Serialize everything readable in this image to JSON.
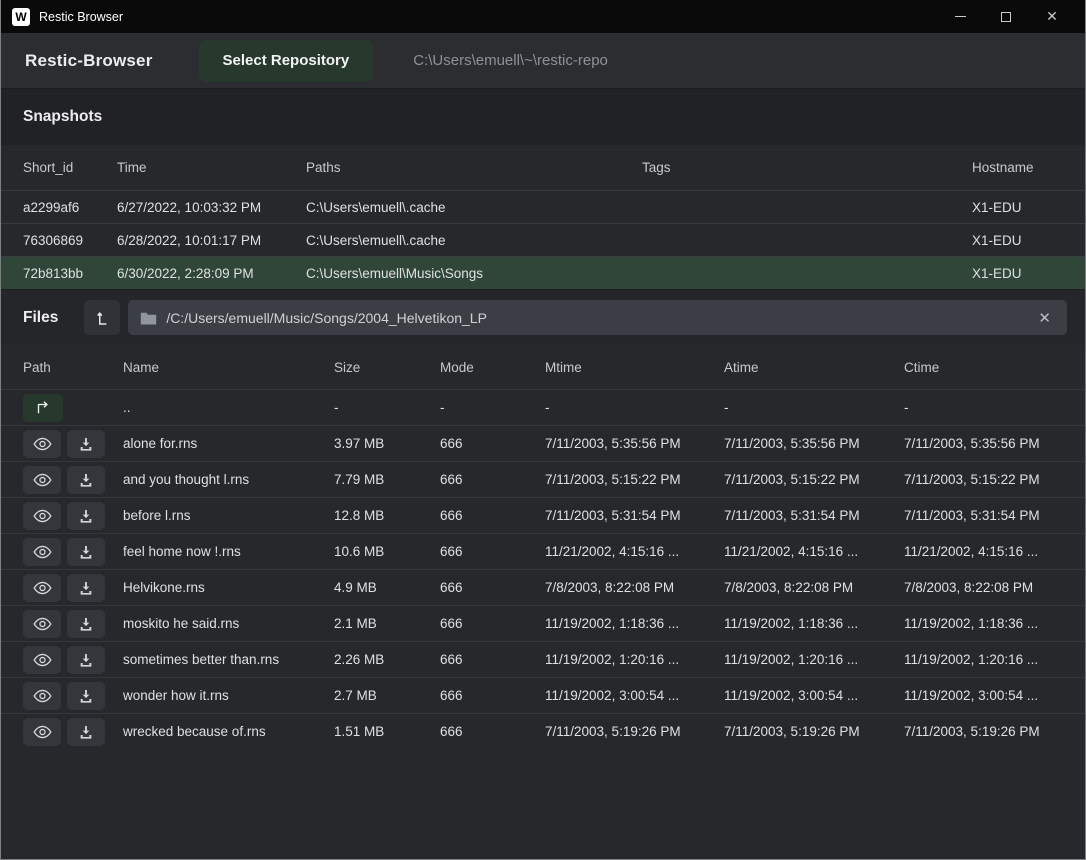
{
  "window": {
    "title": "Restic Browser",
    "controls": {
      "minimize": "minimize",
      "maximize": "maximize",
      "close": "✕"
    }
  },
  "header": {
    "app_title": "Restic-Browser",
    "select_repo_label": "Select Repository",
    "repo_path": "C:\\Users\\emuell\\~\\restic-repo"
  },
  "snapshots": {
    "heading": "Snapshots",
    "columns": [
      "Short_id",
      "Time",
      "Paths",
      "Tags",
      "Hostname"
    ],
    "rows": [
      {
        "short_id": "a2299af6",
        "time": "6/27/2022, 10:03:32 PM",
        "paths": "C:\\Users\\emuell\\.cache",
        "tags": "",
        "hostname": "X1-EDU",
        "selected": false
      },
      {
        "short_id": "76306869",
        "time": "6/28/2022, 10:01:17 PM",
        "paths": "C:\\Users\\emuell\\.cache",
        "tags": "",
        "hostname": "X1-EDU",
        "selected": false
      },
      {
        "short_id": "72b813bb",
        "time": "6/30/2022, 2:28:09 PM",
        "paths": "C:\\Users\\emuell\\Music\\Songs",
        "tags": "",
        "hostname": "X1-EDU",
        "selected": true
      }
    ]
  },
  "files": {
    "heading": "Files",
    "breadcrumb_path": "/C:/Users/emuell/Music/Songs/2004_Helvetikon_LP",
    "clear_label": "✕",
    "columns": [
      "Path",
      "Name",
      "Size",
      "Mode",
      "Mtime",
      "Atime",
      "Ctime"
    ],
    "parent_row": {
      "name": "..",
      "size": "-",
      "mode": "-",
      "mtime": "-",
      "atime": "-",
      "ctime": "-"
    },
    "rows": [
      {
        "name": "alone for.rns",
        "size": "3.97 MB",
        "mode": "666",
        "mtime": "7/11/2003, 5:35:56 PM",
        "atime": "7/11/2003, 5:35:56 PM",
        "ctime": "7/11/2003, 5:35:56 PM"
      },
      {
        "name": "and you thought l.rns",
        "size": "7.79 MB",
        "mode": "666",
        "mtime": "7/11/2003, 5:15:22 PM",
        "atime": "7/11/2003, 5:15:22 PM",
        "ctime": "7/11/2003, 5:15:22 PM"
      },
      {
        "name": "before l.rns",
        "size": "12.8 MB",
        "mode": "666",
        "mtime": "7/11/2003, 5:31:54 PM",
        "atime": "7/11/2003, 5:31:54 PM",
        "ctime": "7/11/2003, 5:31:54 PM"
      },
      {
        "name": "feel home now !.rns",
        "size": "10.6 MB",
        "mode": "666",
        "mtime": "11/21/2002, 4:15:16 ...",
        "atime": "11/21/2002, 4:15:16 ...",
        "ctime": "11/21/2002, 4:15:16 ..."
      },
      {
        "name": "Helvikone.rns",
        "size": "4.9 MB",
        "mode": "666",
        "mtime": "7/8/2003, 8:22:08 PM",
        "atime": "7/8/2003, 8:22:08 PM",
        "ctime": "7/8/2003, 8:22:08 PM"
      },
      {
        "name": "moskito he said.rns",
        "size": "2.1 MB",
        "mode": "666",
        "mtime": "11/19/2002, 1:18:36 ...",
        "atime": "11/19/2002, 1:18:36 ...",
        "ctime": "11/19/2002, 1:18:36 ..."
      },
      {
        "name": "sometimes better than.rns",
        "size": "2.26 MB",
        "mode": "666",
        "mtime": "11/19/2002, 1:20:16 ...",
        "atime": "11/19/2002, 1:20:16 ...",
        "ctime": "11/19/2002, 1:20:16 ..."
      },
      {
        "name": "wonder how it.rns",
        "size": "2.7 MB",
        "mode": "666",
        "mtime": "11/19/2002, 3:00:54 ...",
        "atime": "11/19/2002, 3:00:54 ...",
        "ctime": "11/19/2002, 3:00:54 ..."
      },
      {
        "name": "wrecked because of.rns",
        "size": "1.51 MB",
        "mode": "666",
        "mtime": "7/11/2003, 5:19:26 PM",
        "atime": "7/11/2003, 5:19:26 PM",
        "ctime": "7/11/2003, 5:19:26 PM"
      }
    ]
  }
}
